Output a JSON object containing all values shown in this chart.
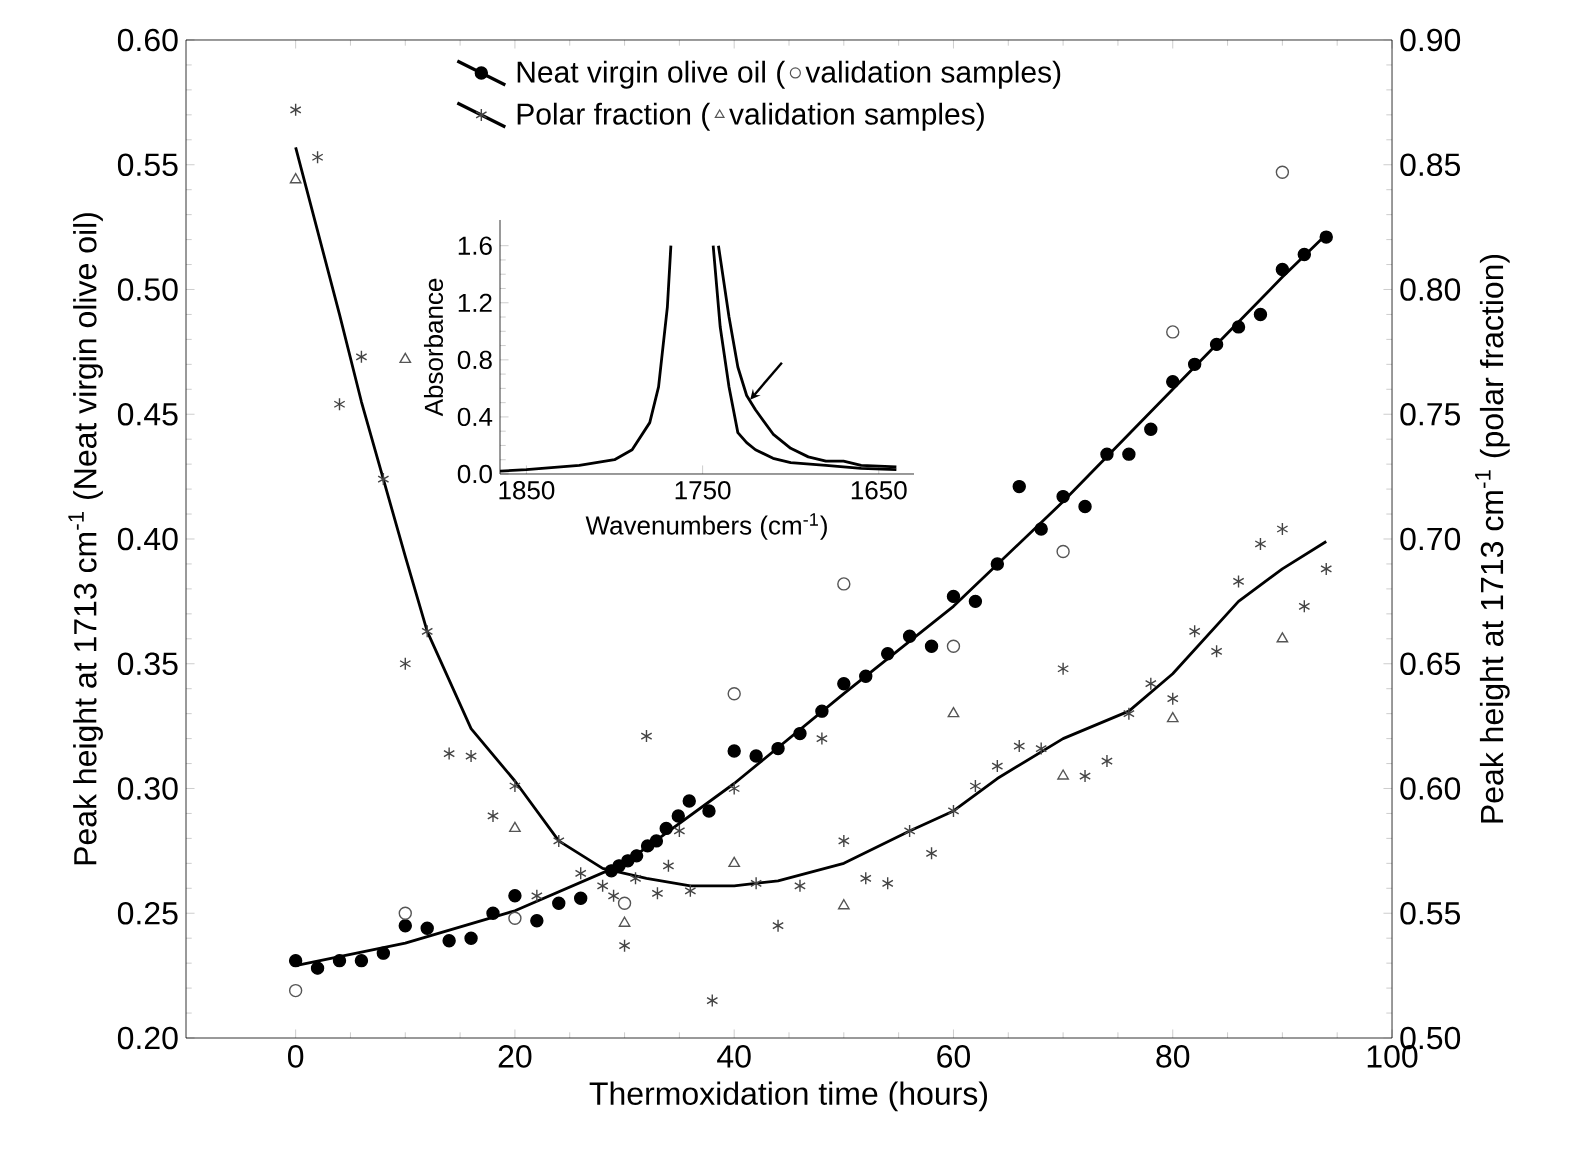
{
  "chart_data": [
    {
      "type": "scatter",
      "xlabel": "Thermoxidation time (hours)",
      "ylabel": "Peak height at 1713 cm$^{-1}$ (Neat virgin olive oil)",
      "y2label": "Peak height at 1713 cm$^{-1}$ (polar fraction)",
      "legend": "top",
      "xlim": [
        -10,
        100
      ],
      "xticks": [
        0,
        20,
        40,
        60,
        80,
        100
      ],
      "ylim": [
        0.2,
        0.6
      ],
      "yticks": [
        {
          "value": 0.2,
          "label": "0.20"
        },
        {
          "value": 0.25,
          "label": "0.25"
        },
        {
          "value": 0.3,
          "label": "0.30"
        },
        {
          "value": 0.35,
          "label": "0.35"
        },
        {
          "value": 0.4,
          "label": "0.40"
        },
        {
          "value": 0.45,
          "label": "0.45"
        },
        {
          "value": 0.5,
          "label": "0.50"
        },
        {
          "value": 0.55,
          "label": "0.55"
        },
        {
          "value": 0.6,
          "label": "0.60"
        }
      ],
      "y2lim": [
        0.5,
        0.9
      ],
      "y2ticks": [
        {
          "value": 0.5,
          "label": "0.50"
        },
        {
          "value": 0.55,
          "label": "0.55"
        },
        {
          "value": 0.6,
          "label": "0.60"
        },
        {
          "value": 0.65,
          "label": "0.65"
        },
        {
          "value": 0.7,
          "label": "0.70"
        },
        {
          "value": 0.75,
          "label": "0.75"
        },
        {
          "value": 0.8,
          "label": "0.80"
        },
        {
          "value": 0.85,
          "label": "0.85"
        },
        {
          "value": 0.9,
          "label": "0.90"
        }
      ],
      "series": [
        {
          "name": "Neat virgin olive oil  (",
          "type": "scatter",
          "marker": "circle",
          "color": "#000000",
          "x": [
            0,
            2,
            4,
            6,
            8,
            10,
            12,
            14,
            16,
            18,
            20,
            22,
            24,
            26,
            28.8,
            29.5,
            30.3,
            31.1,
            32.1,
            32.9,
            33.8,
            34.9,
            35.9,
            37.7,
            40,
            42,
            44,
            46,
            48,
            50,
            52,
            54,
            56,
            58,
            60,
            62,
            64,
            66,
            68,
            70,
            72,
            74,
            76,
            78,
            80,
            82,
            84,
            86,
            88,
            90,
            92,
            94
          ],
          "values": [
            0.231,
            0.228,
            0.231,
            0.231,
            0.234,
            0.245,
            0.244,
            0.239,
            0.24,
            0.25,
            0.257,
            0.247,
            0.254,
            0.256,
            0.267,
            0.269,
            0.271,
            0.273,
            0.277,
            0.279,
            0.284,
            0.289,
            0.295,
            0.291,
            0.315,
            0.313,
            0.316,
            0.322,
            0.331,
            0.342,
            0.345,
            0.354,
            0.361,
            0.357,
            0.377,
            0.375,
            0.39,
            0.421,
            0.404,
            0.417,
            0.413,
            0.434,
            0.434,
            0.444,
            0.463,
            0.47,
            0.478,
            0.485,
            0.49,
            0.508,
            0.514,
            0.521
          ]
        },
        {
          "type": "line",
          "color": "#000000",
          "x": [
            0,
            10,
            20,
            30,
            40,
            50,
            60,
            70,
            80,
            90,
            94
          ],
          "values": [
            0.229,
            0.238,
            0.251,
            0.27,
            0.302,
            0.338,
            0.373,
            0.415,
            0.46,
            0.505,
            0.522
          ]
        },
        {
          "name": "validation samples)",
          "type": "scatter",
          "marker": "circle",
          "color": "#555555",
          "x": [
            0,
            10,
            20,
            30,
            40,
            50,
            60,
            70,
            80,
            90
          ],
          "values": [
            0.219,
            0.25,
            0.248,
            0.254,
            0.338,
            0.382,
            0.357,
            0.395,
            0.483,
            0.547
          ]
        },
        {
          "name": "Polar fraction  (",
          "type": "scatter",
          "marker": "cross",
          "axis": "y2",
          "color": "#444444",
          "x": [
            0,
            2,
            4,
            6,
            8,
            10,
            12,
            14,
            16,
            18,
            20,
            22,
            24,
            26,
            28,
            29,
            30,
            31,
            32,
            33,
            34,
            35,
            36,
            38,
            40,
            42,
            44,
            46,
            48,
            50,
            52,
            54,
            56,
            58,
            60,
            62,
            64,
            66,
            68,
            70,
            72,
            74,
            76,
            78,
            80,
            82,
            84,
            86,
            88,
            90,
            92,
            94
          ],
          "values": [
            0.872,
            0.853,
            0.754,
            0.773,
            0.724,
            0.65,
            0.663,
            0.614,
            0.613,
            0.589,
            0.601,
            0.557,
            0.579,
            0.566,
            0.561,
            0.557,
            0.537,
            0.564,
            0.621,
            0.558,
            0.569,
            0.583,
            0.559,
            0.515,
            0.6,
            0.562,
            0.545,
            0.561,
            0.62,
            0.579,
            0.564,
            0.562,
            0.583,
            0.574,
            0.591,
            0.601,
            0.609,
            0.617,
            0.616,
            0.648,
            0.605,
            0.611,
            0.63,
            0.642,
            0.636,
            0.663,
            0.655,
            0.683,
            0.698,
            0.704,
            0.673,
            0.688
          ]
        },
        {
          "type": "line",
          "axis": "y2",
          "color": "#000000",
          "x": [
            0,
            4,
            6,
            8,
            10,
            12,
            16,
            20,
            24,
            28,
            32,
            36,
            40,
            44,
            50,
            56,
            60,
            64,
            70,
            76,
            80,
            86,
            90,
            94
          ],
          "values": [
            0.857,
            0.79,
            0.755,
            0.724,
            0.693,
            0.663,
            0.624,
            0.603,
            0.579,
            0.568,
            0.564,
            0.561,
            0.561,
            0.563,
            0.57,
            0.583,
            0.591,
            0.604,
            0.62,
            0.631,
            0.646,
            0.675,
            0.688,
            0.699
          ]
        },
        {
          "name": "validation samples)",
          "type": "scatter",
          "marker": "triangle",
          "axis": "y2",
          "color": "#555555",
          "x": [
            0,
            10,
            20,
            30,
            40,
            50,
            60,
            70,
            80,
            90
          ],
          "values": [
            0.844,
            0.772,
            0.584,
            0.546,
            0.57,
            0.553,
            0.63,
            0.605,
            0.628,
            0.66
          ]
        }
      ]
    },
    {
      "type": "line",
      "xlabel": "Wavenumbers (cm$^{-1}$)",
      "ylabel": "Absorbance",
      "xlim": [
        1865,
        1630
      ],
      "xticks": [
        1850,
        1750,
        1650
      ],
      "ylim": [
        0,
        1.78
      ],
      "yticks": [
        {
          "value": 0,
          "label": "0.0"
        },
        {
          "value": 0.4,
          "label": "0.4"
        },
        {
          "value": 0.8,
          "label": "0.8"
        },
        {
          "value": 1.2,
          "label": "1.2"
        },
        {
          "value": 1.6,
          "label": "1.6"
        }
      ],
      "series": [
        {
          "color": "#000000",
          "x": [
            1865,
            1850,
            1820,
            1800,
            1790,
            1780,
            1775,
            1770,
            1768,
            1756,
            1744,
            1740,
            1735,
            1730,
            1725,
            1720,
            1710,
            1700,
            1680,
            1660,
            1640
          ],
          "values": [
            0.02,
            0.03,
            0.06,
            0.1,
            0.17,
            0.36,
            0.61,
            1.17,
            1.6,
            null,
            1.6,
            1.03,
            0.61,
            0.29,
            0.22,
            0.17,
            0.11,
            0.08,
            0.06,
            0.04,
            0.03
          ]
        },
        {
          "color": "#000000",
          "x": [
            1741,
            1735,
            1730,
            1725,
            1720,
            1710,
            1700,
            1690,
            1680,
            1670,
            1660,
            1640
          ],
          "values": [
            1.6,
            1.1,
            0.75,
            0.55,
            0.45,
            0.28,
            0.18,
            0.12,
            0.09,
            0.09,
            0.06,
            0.05
          ]
        }
      ]
    }
  ]
}
